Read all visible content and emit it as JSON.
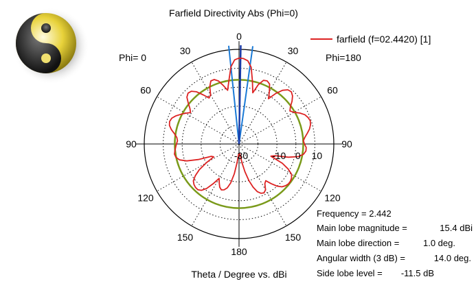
{
  "logo": {
    "icon": "yin-yang-logo-icon"
  },
  "chart_data": {
    "type": "polar",
    "title": "Farfield Directivity Abs (Phi=0)",
    "xlabel": "Theta / Degree vs. dBi",
    "legend": {
      "label": "farfield (f=02.4420) [1]",
      "placement": "top-right",
      "color": "#dd2222"
    },
    "phi_left_label": "Phi=  0",
    "phi_right_label": "Phi=180",
    "radial_range": [
      -30,
      20
    ],
    "radial_tick_labels": [
      "-30",
      "-10",
      "0",
      "10"
    ],
    "radial_tick_values": [
      -30,
      -10,
      0,
      10
    ],
    "angle_labels": [
      {
        "text": "0",
        "theta": 0
      },
      {
        "text": "30",
        "theta": 30
      },
      {
        "text": "60",
        "theta": 60
      },
      {
        "text": "90",
        "theta": 90
      },
      {
        "text": "120",
        "theta": 120
      },
      {
        "text": "150",
        "theta": 150
      },
      {
        "text": "180",
        "theta": 180
      },
      {
        "text": "150",
        "theta": 210
      },
      {
        "text": "120",
        "theta": 240
      },
      {
        "text": "90",
        "theta": 270
      },
      {
        "text": "60",
        "theta": 300
      },
      {
        "text": "30",
        "theta": 330
      }
    ],
    "sidelobe_level_circle_dbi": 3.9,
    "sidelobe_circle_color": "#7a9a1a",
    "beamwidth_lines_theta": [
      -6,
      8
    ],
    "main_lobe_line_theta": 1,
    "beam_line_color": "#1a7ad6",
    "main_line_color": "#1a3aa6",
    "series": [
      {
        "name": "farfield (f=02.4420) [1]",
        "color": "#dd2222",
        "theta": [
          0,
          3,
          6,
          9,
          12,
          15,
          18,
          21,
          24,
          27,
          30,
          33,
          36,
          39,
          42,
          45,
          48,
          51,
          54,
          57,
          60,
          63,
          66,
          69,
          72,
          75,
          78,
          81,
          84,
          87,
          90,
          93,
          96,
          99,
          102,
          105,
          108,
          111,
          114,
          117,
          120,
          123,
          126,
          129,
          132,
          135,
          138,
          141,
          144,
          147,
          150,
          153,
          156,
          159,
          162,
          165,
          168,
          171,
          174,
          177,
          180,
          183,
          186,
          189,
          192,
          195,
          198,
          201,
          204,
          207,
          210,
          213,
          216,
          219,
          222,
          225,
          228,
          231,
          234,
          237,
          240,
          243,
          246,
          249,
          252,
          255,
          258,
          261,
          264,
          267,
          270,
          273,
          276,
          279,
          282,
          285,
          288,
          291,
          294,
          297,
          300,
          303,
          306,
          309,
          312,
          315,
          318,
          321,
          324,
          327,
          330,
          333,
          336,
          339,
          342,
          345,
          348,
          351,
          354,
          357
        ],
        "values": [
          15.4,
          15.2,
          14.2,
          11.0,
          4.0,
          -2.0,
          3.0,
          6.0,
          6.5,
          5.5,
          2.0,
          -1.5,
          3.0,
          6.5,
          8.5,
          9.0,
          8.0,
          6.0,
          3.5,
          2.0,
          3.5,
          6.0,
          8.0,
          9.0,
          9.5,
          9.0,
          8.0,
          6.5,
          5.0,
          4.0,
          4.5,
          5.5,
          5.5,
          4.5,
          2.0,
          -3.0,
          -10.0,
          -12.0,
          -5.0,
          -1.0,
          2.0,
          3.0,
          3.5,
          3.5,
          3.0,
          2.0,
          0.0,
          -3.0,
          -6.0,
          -5.0,
          -2.0,
          -1.0,
          -1.5,
          -3.0,
          -6.0,
          -10.0,
          -15.0,
          -20.0,
          -24.0,
          -25.0,
          -25.0,
          -24.0,
          -20.0,
          -14.0,
          -9.0,
          -6.0,
          -4.5,
          -4.0,
          -5.0,
          -7.0,
          -9.0,
          -5.0,
          -1.0,
          1.5,
          2.5,
          2.5,
          2.0,
          1.0,
          -1.5,
          -5.0,
          -10.0,
          -15.0,
          -14.0,
          -7.0,
          -1.0,
          2.5,
          4.0,
          4.5,
          4.0,
          3.5,
          3.0,
          2.5,
          3.0,
          4.5,
          6.5,
          8.0,
          8.5,
          8.0,
          6.5,
          4.5,
          2.5,
          0.5,
          2.0,
          4.5,
          7.0,
          8.0,
          7.5,
          5.5,
          2.0,
          -1.0,
          0.0,
          4.0,
          6.5,
          6.5,
          5.0,
          2.0,
          -1.0,
          4.0,
          11.0,
          14.5
        ]
      }
    ]
  },
  "info": {
    "frequency": "Frequency = 2.442",
    "main_lobe_magnitude_label": "Main lobe magnitude =",
    "main_lobe_magnitude_value": "15.4 dBi",
    "main_lobe_direction_label": "Main lobe direction =",
    "main_lobe_direction_value": "1.0 deg.",
    "angular_width_label": "Angular width (3 dB) =",
    "angular_width_value": "14.0 deg.",
    "side_lobe_label": "Side lobe level =",
    "side_lobe_value": "-11.5 dB"
  }
}
